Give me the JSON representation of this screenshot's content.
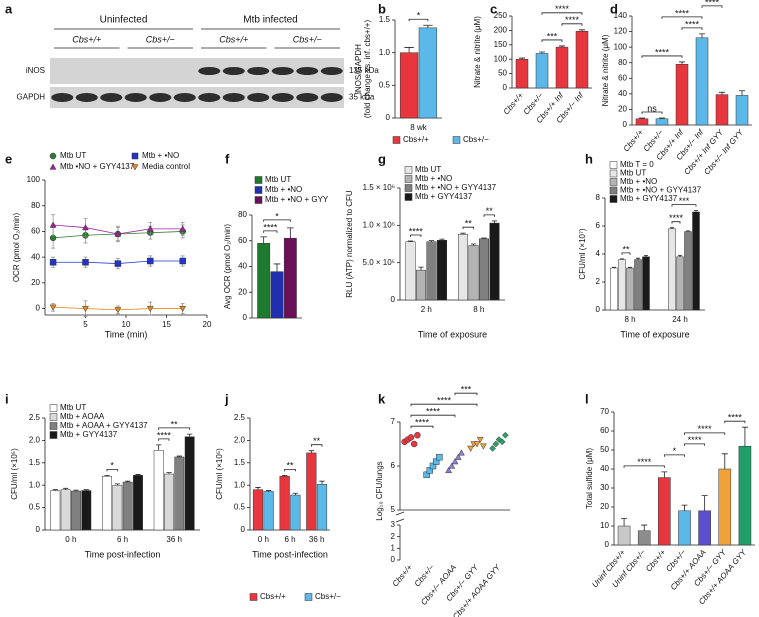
{
  "blot": {
    "panel": "a",
    "groups": [
      "Uninfected",
      "Mtb infected"
    ],
    "lanes": [
      "Cbs+/+",
      "Cbs+/−",
      "Cbs+/+",
      "Cbs+/−"
    ],
    "rows": [
      {
        "name": "iNOS",
        "size": "135 kDa"
      },
      {
        "name": "GAPDH",
        "size": "35 kDa"
      }
    ]
  },
  "chart_data": [
    {
      "panel": "b",
      "type": "grouped_bar",
      "ylabel": [
        "iNOS/GAPDH",
        "(fold change vs. inf. cbs+/+)"
      ],
      "categories": [
        "8 wk"
      ],
      "series": [
        {
          "name": "Cbs+/+",
          "color": "#e8363f",
          "values": [
            1.0
          ],
          "errors": [
            0.08
          ]
        },
        {
          "name": "Cbs+/−",
          "color": "#5bb8e8",
          "values": [
            1.38
          ],
          "errors": [
            0.04
          ]
        }
      ],
      "ylim": [
        0,
        1.5
      ],
      "yticks": [
        0,
        0.5,
        {
          "value": 1.0,
          "label": "1.0"
        },
        1.5
      ],
      "legend": "bottom",
      "annotations": [
        {
          "text": "*",
          "bars": [
            0,
            1
          ]
        }
      ]
    },
    {
      "panel": "c",
      "type": "bar",
      "ylabel": "Nitrate & nitrite (μM)",
      "categories": [
        "Cbs+/+",
        "Cbs+/−",
        "Cbs+/+ Inf",
        "Cbs+/− Inf"
      ],
      "values": [
        100,
        120,
        142,
        197
      ],
      "errors": [
        4,
        5,
        4,
        5
      ],
      "colors": [
        "#e8363f",
        "#5bb8e8",
        "#e8363f",
        "#e8363f"
      ],
      "ylim": [
        0,
        250
      ],
      "yticks": [
        0,
        50,
        100,
        150,
        200,
        250
      ],
      "annotations": [
        {
          "text": "***",
          "bars": [
            1,
            2
          ]
        },
        {
          "text": "****",
          "bars": [
            2,
            3
          ]
        },
        {
          "text": "****",
          "bars": [
            1,
            3
          ]
        }
      ]
    },
    {
      "panel": "d",
      "type": "bar",
      "ylabel": "Nitrate & nitrite (μM)",
      "categories": [
        "Cbs+/+",
        "Cbs+/−",
        "Cbs+/+ Inf",
        "Cbs+/− Inf",
        "Cbs+/+ Inf GYY",
        "Cbs+/− Inf GYY"
      ],
      "values": [
        8,
        8,
        78,
        112,
        39,
        38
      ],
      "errors": [
        1,
        1,
        3,
        5,
        3,
        6
      ],
      "colors": [
        "#e8363f",
        "#5bb8e8",
        "#e8363f",
        "#5bb8e8",
        "#e8363f",
        "#5bb8e8"
      ],
      "ylim": [
        0,
        140
      ],
      "yticks": [
        0,
        20,
        40,
        60,
        80,
        100,
        120,
        140
      ],
      "annotations": [
        {
          "text": "ns",
          "bars": [
            0,
            1
          ]
        },
        {
          "text": "****",
          "bars": [
            0,
            2
          ]
        },
        {
          "text": "****",
          "bars": [
            2,
            3
          ]
        },
        {
          "text": "****",
          "bars": [
            1,
            3
          ]
        },
        {
          "text": "****",
          "bars": [
            3,
            4
          ]
        },
        {
          "text": "****",
          "bars": [
            3,
            5
          ]
        }
      ]
    },
    {
      "panel": "e",
      "type": "line",
      "ylabel": "OCR (pmol O₂/min)",
      "xlabel": "Time (min)",
      "x": [
        1,
        5,
        9,
        13,
        17
      ],
      "series": [
        {
          "name": "Mtb UT",
          "color": "#2e7d32",
          "marker": "circle",
          "values": [
            55,
            57,
            58,
            59,
            60
          ],
          "errors": [
            8,
            6,
            5,
            5,
            5
          ]
        },
        {
          "name": "Mtb + •NO",
          "color": "#2133c9",
          "marker": "square",
          "values": [
            36,
            36,
            35,
            37,
            37
          ],
          "errors": [
            4,
            4,
            4,
            4,
            4
          ]
        },
        {
          "name": "Mtb •NO + GYY4137",
          "color": "#a020a0",
          "marker": "triangle",
          "values": [
            65,
            63,
            58,
            62,
            62
          ],
          "errors": [
            8,
            7,
            6,
            5,
            5
          ]
        },
        {
          "name": "Media control",
          "color": "#e8891e",
          "marker": "tri_down",
          "values": [
            1,
            0,
            -1,
            0,
            0
          ],
          "errors": [
            3,
            6,
            3,
            5,
            4
          ]
        }
      ],
      "xlim": [
        0,
        20
      ],
      "xticks": [
        5,
        10,
        15,
        20
      ],
      "ylim": [
        -5,
        100
      ],
      "yticks": [
        0,
        20,
        40,
        60,
        80,
        100
      ]
    },
    {
      "panel": "f",
      "type": "grouped_bar",
      "ylabel": "Avg OCR (pmol O₂/min)",
      "categories": [
        null
      ],
      "series": [
        {
          "name": "Mtb UT",
          "color": "#1e7a2e",
          "values": [
            58
          ],
          "errors": [
            5
          ]
        },
        {
          "name": "Mtb + •NO",
          "color": "#1f2fae",
          "values": [
            36
          ],
          "errors": [
            6
          ]
        },
        {
          "name": "Mtb + •NO + GYY",
          "color": "#6b0f5a",
          "values": [
            62
          ],
          "errors": [
            8
          ]
        }
      ],
      "ylim": [
        0,
        80
      ],
      "yticks": [
        0,
        20,
        40,
        60,
        80
      ],
      "legend": "top",
      "annotations": [
        {
          "text": "****",
          "bars": [
            0,
            1
          ]
        },
        {
          "text": "*",
          "bars": [
            0,
            2
          ]
        }
      ]
    },
    {
      "panel": "g",
      "type": "grouped_bar",
      "ylabel": "RLU (ATP) normalized to CFU",
      "xlabel": "Time of exposure",
      "categories": [
        "2 h",
        "8 h"
      ],
      "series": [
        {
          "name": "Mtb UT",
          "color": "#e6e6e6",
          "values": [
            780000,
            880000
          ],
          "errors": [
            10000,
            15000
          ]
        },
        {
          "name": "Mtb + •NO",
          "color": "#b3b3b3",
          "values": [
            400000,
            730000
          ],
          "errors": [
            40000,
            20000
          ]
        },
        {
          "name": "Mtb + •NO + GYY4137",
          "color": "#808080",
          "values": [
            780000,
            820000
          ],
          "errors": [
            15000,
            10000
          ]
        },
        {
          "name": "Mtb + GYY4137",
          "color": "#1a1a1a",
          "values": [
            800000,
            1030000
          ],
          "errors": [
            15000,
            30000
          ]
        }
      ],
      "ylim": [
        0,
        1500000
      ],
      "yticks": [
        0,
        {
          "value": 500000,
          "label": "5.0 × 10⁵"
        },
        {
          "value": 1000000,
          "label": "1.0 × 10⁶"
        },
        {
          "value": 1500000,
          "label": "1.5 × 10⁶"
        }
      ],
      "legend": "top",
      "annotations": [
        {
          "text": "****",
          "bars": [
            0,
            1
          ]
        },
        {
          "text": "**",
          "bars": [
            4,
            5
          ]
        },
        {
          "text": "**",
          "bars": [
            6,
            7
          ]
        }
      ]
    },
    {
      "panel": "h",
      "type": "grouped_bar",
      "ylabel": "CFU/ml (×10⁷)",
      "xlabel": "Time of exposure",
      "categories": [
        "8 h",
        "24 h"
      ],
      "series": [
        {
          "name": "Mtb T = 0",
          "color": "#ffffff",
          "values": [
            3.0,
            null
          ],
          "errors": [
            0.05,
            null
          ]
        },
        {
          "name": "Mtb UT",
          "color": "#e6e6e6",
          "values": [
            3.6,
            5.8
          ],
          "errors": [
            0.05,
            0.08
          ]
        },
        {
          "name": "Mtb + •NO",
          "color": "#b3b3b3",
          "values": [
            3.0,
            3.8
          ],
          "errors": [
            0.05,
            0.1
          ]
        },
        {
          "name": "Mtb + •NO + GYY4137",
          "color": "#808080",
          "values": [
            3.6,
            5.6
          ],
          "errors": [
            0.1,
            0.05
          ]
        },
        {
          "name": "Mtb + GYY4137",
          "color": "#1a1a1a",
          "values": [
            3.8,
            7.0
          ],
          "errors": [
            0.1,
            0.1
          ]
        }
      ],
      "ylim": [
        0,
        8
      ],
      "yticks": [
        0,
        2,
        4,
        6,
        8
      ],
      "legend": "top",
      "annotations": [
        {
          "text": "**",
          "bars": [
            1,
            2
          ]
        },
        {
          "text": "****",
          "bars": [
            6,
            7
          ]
        },
        {
          "text": "***",
          "bars": [
            6,
            9
          ]
        }
      ]
    },
    {
      "panel": "i",
      "type": "grouped_bar",
      "ylabel": "CFU/ml (×10⁵)",
      "xlabel": "Time post-infection",
      "categories": [
        "0 h",
        "6 h",
        "36 h"
      ],
      "series": [
        {
          "name": "Mtb UT",
          "color": "#ffffff",
          "values": [
            0.88,
            1.2,
            1.78
          ],
          "errors": [
            0.02,
            0.02,
            0.12
          ]
        },
        {
          "name": "Mtb + AOAA",
          "color": "#d9d9d9",
          "values": [
            0.9,
            1.0,
            1.25
          ],
          "errors": [
            0.03,
            0.03,
            0.03
          ]
        },
        {
          "name": "Mtb + AOAA + GYY4137",
          "color": "#808080",
          "values": [
            0.87,
            1.07,
            1.63
          ],
          "errors": [
            0.02,
            0.02,
            0.02
          ]
        },
        {
          "name": "Mtb + GYY4137",
          "color": "#1a1a1a",
          "values": [
            0.88,
            1.22,
            2.08
          ],
          "errors": [
            0.02,
            0.02,
            0.06
          ]
        }
      ],
      "ylim": [
        0,
        2.5
      ],
      "yticks": [
        0,
        0.5,
        {
          "value": 1.0,
          "label": "1.0"
        },
        1.5,
        {
          "value": 2.0,
          "label": "2.0"
        },
        2.5
      ],
      "legend": "top",
      "annotations": [
        {
          "text": "*",
          "bars": [
            4,
            5
          ]
        },
        {
          "text": "****",
          "bars": [
            8,
            9
          ]
        },
        {
          "text": "**",
          "bars": [
            8,
            11
          ]
        }
      ]
    },
    {
      "panel": "j",
      "type": "grouped_bar",
      "ylabel": "CFU/ml (×10⁵)",
      "xlabel": "Time post-infection",
      "categories": [
        "0 h",
        "6 h",
        "36 h"
      ],
      "series": [
        {
          "name": "Cbs+/+",
          "color": "#e8363f",
          "values": [
            0.9,
            1.2,
            1.72
          ],
          "errors": [
            0.05,
            0.02,
            0.05
          ]
        },
        {
          "name": "Cbs+/−",
          "color": "#5bb8e8",
          "values": [
            0.86,
            0.78,
            1.02
          ],
          "errors": [
            0.02,
            0.04,
            0.07
          ]
        }
      ],
      "ylim": [
        0,
        2.5
      ],
      "yticks": [
        0,
        0.5,
        {
          "value": 1.0,
          "label": "1.0"
        },
        1.5,
        {
          "value": 2.0,
          "label": "2.0"
        },
        2.5
      ],
      "legend": "bottom",
      "annotations": [
        {
          "text": "**",
          "bars": [
            2,
            3
          ]
        },
        {
          "text": "**",
          "bars": [
            4,
            5
          ]
        }
      ]
    },
    {
      "panel": "k",
      "type": "strip",
      "ylabel": "Log₁₀ CFU/lungs",
      "categories": [
        "Cbs+/+",
        "Cbs+/−",
        "Cbs+/− AOAA",
        "Cbs+/− GYY",
        "Cbs+/+ AOAA GYY"
      ],
      "groups": [
        {
          "color": "#e8363f",
          "marker": "circle",
          "values": [
            6.55,
            6.6,
            6.65,
            6.5,
            6.7
          ]
        },
        {
          "color": "#5bb8e8",
          "marker": "square",
          "values": [
            5.8,
            5.9,
            6.0,
            6.1,
            6.2
          ]
        },
        {
          "color": "#8b7fd6",
          "marker": "triangle",
          "values": [
            5.9,
            6.0,
            6.1,
            6.2,
            6.3
          ]
        },
        {
          "color": "#f0a13a",
          "marker": "tri_down",
          "values": [
            6.4,
            6.5,
            6.5,
            6.6,
            6.45
          ]
        },
        {
          "color": "#2e9e6a",
          "marker": "diamond",
          "values": [
            6.4,
            6.5,
            6.6,
            6.55,
            6.7
          ]
        }
      ],
      "ylim": [
        5,
        7
      ],
      "yticks": [
        5,
        6,
        7
      ],
      "ylim_lower": [
        0,
        3
      ],
      "yticks_lower": [
        0,
        1,
        2,
        3
      ],
      "annotations": [
        {
          "text": "****",
          "bars": [
            0,
            1
          ]
        },
        {
          "text": "****",
          "bars": [
            0,
            2
          ]
        },
        {
          "text": "****",
          "bars": [
            0,
            3
          ]
        },
        {
          "text": "***",
          "bars": [
            2,
            3
          ]
        }
      ]
    },
    {
      "panel": "l",
      "type": "bar",
      "ylabel": "Total sulfide (μM)",
      "categories": [
        "Uninf Cbs+/+",
        "Uninf Cbs+/−",
        "Cbs+/+",
        "Cbs+/−",
        "Cbs+/+ AOAA",
        "Cbs+/− GYY",
        "Cbs+/+ AOAA GYY"
      ],
      "values": [
        10,
        7.5,
        35.5,
        18,
        18,
        40,
        52
      ],
      "errors": [
        4,
        3,
        3,
        3,
        8,
        8,
        10
      ],
      "colors": [
        "#c8c8c8",
        "#8c8c8c",
        "#e8363f",
        "#5bb8e8",
        "#5a4fcf",
        "#f0a13a",
        "#1f9e6a"
      ],
      "ylim": [
        0,
        70
      ],
      "yticks": [
        0,
        10,
        20,
        30,
        40,
        50,
        60,
        70
      ],
      "annotations": [
        {
          "text": "****",
          "bars": [
            0,
            2
          ]
        },
        {
          "text": "*",
          "bars": [
            2,
            3
          ]
        },
        {
          "text": "****",
          "bars": [
            3,
            4
          ]
        },
        {
          "text": "****",
          "bars": [
            3,
            5
          ]
        },
        {
          "text": "****",
          "bars": [
            5,
            6
          ]
        }
      ]
    }
  ]
}
